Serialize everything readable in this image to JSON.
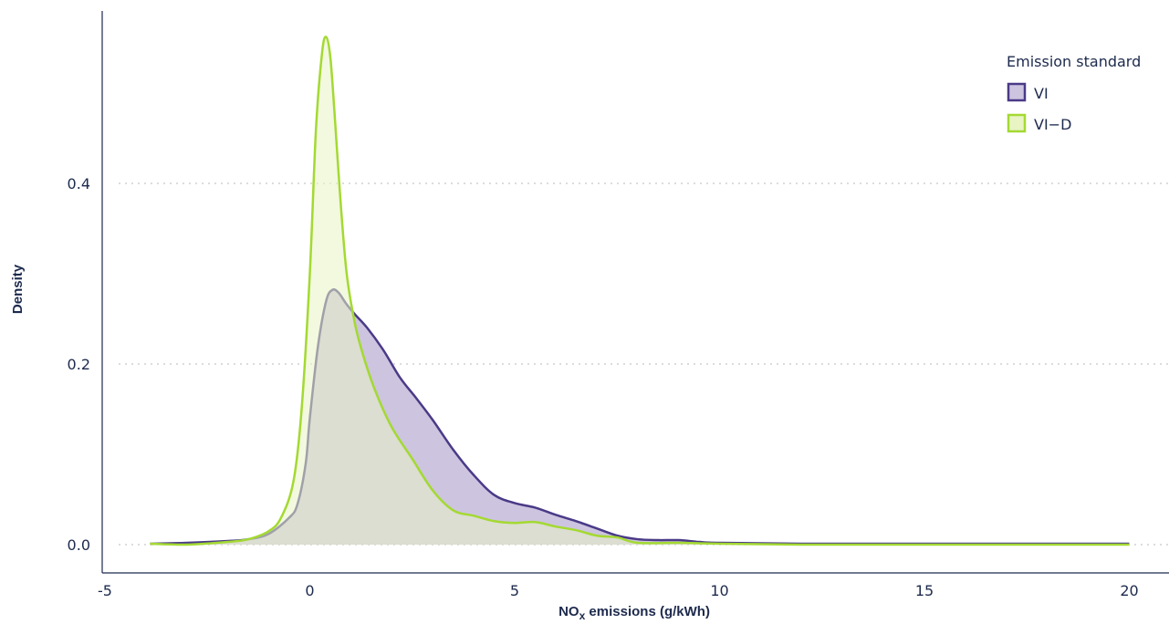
{
  "chart_data": {
    "type": "area",
    "xlabel": {
      "main": "NO",
      "sub": "x",
      "rest": " emissions (g/kWh)"
    },
    "ylabel": "Density",
    "xlim": [
      -5,
      21
    ],
    "ylim": [
      -0.03,
      0.59
    ],
    "x_ticks": [
      -5,
      0,
      5,
      10,
      15,
      20
    ],
    "y_ticks": [
      0.0,
      0.2,
      0.4
    ],
    "x_tick_labels": [
      "-5",
      "0",
      "5",
      "10",
      "15",
      "20"
    ],
    "y_tick_labels": [
      "0.0",
      "0.2",
      "0.4"
    ],
    "grid": "horizontal dotted",
    "legend": {
      "title": "Emission standard",
      "position": "top-right"
    },
    "series": [
      {
        "name": "VI",
        "stroke": "#4a3a87",
        "fill": "#cdc4e0",
        "x": [
          -3.9,
          -3,
          -2,
          -1.5,
          -1,
          -0.5,
          -0.3,
          -0.1,
          0,
          0.2,
          0.4,
          0.55,
          0.7,
          0.9,
          1.1,
          1.4,
          1.8,
          2.2,
          2.6,
          3,
          3.5,
          4,
          4.5,
          5,
          5.5,
          6,
          6.5,
          7,
          7.5,
          8,
          8.5,
          9,
          9.5,
          10,
          12,
          15,
          20
        ],
        "y": [
          0.001,
          0.002,
          0.004,
          0.006,
          0.012,
          0.03,
          0.045,
          0.09,
          0.14,
          0.22,
          0.27,
          0.282,
          0.279,
          0.266,
          0.255,
          0.24,
          0.215,
          0.185,
          0.162,
          0.138,
          0.105,
          0.077,
          0.055,
          0.046,
          0.041,
          0.033,
          0.026,
          0.018,
          0.01,
          0.006,
          0.005,
          0.005,
          0.003,
          0.002,
          0.001,
          0.001,
          0.001
        ]
      },
      {
        "name": "VI−D",
        "stroke": "#a4d932",
        "fill": "#e8f4c4",
        "x": [
          -3.9,
          -3,
          -2,
          -1.5,
          -1,
          -0.7,
          -0.4,
          -0.2,
          0,
          0.15,
          0.3,
          0.4,
          0.5,
          0.6,
          0.75,
          0.9,
          1.1,
          1.3,
          1.6,
          2,
          2.5,
          3,
          3.5,
          4,
          4.5,
          5,
          5.5,
          6,
          6.5,
          7,
          7.5,
          8,
          9,
          10,
          12,
          15,
          20
        ],
        "y": [
          0.001,
          0.0,
          0.003,
          0.006,
          0.015,
          0.03,
          0.07,
          0.15,
          0.3,
          0.46,
          0.545,
          0.562,
          0.54,
          0.48,
          0.38,
          0.3,
          0.245,
          0.21,
          0.17,
          0.13,
          0.095,
          0.06,
          0.038,
          0.032,
          0.026,
          0.024,
          0.025,
          0.02,
          0.016,
          0.01,
          0.008,
          0.002,
          0.002,
          0.001,
          0.0,
          0.0,
          0.0
        ]
      }
    ]
  },
  "legend": {
    "title": "Emission standard",
    "items": [
      {
        "label": "VI",
        "stroke": "#4a3a87",
        "fill": "#cdc4e0"
      },
      {
        "label": "VI−D",
        "stroke": "#a4d932",
        "fill": "#e8f4c4"
      }
    ]
  }
}
